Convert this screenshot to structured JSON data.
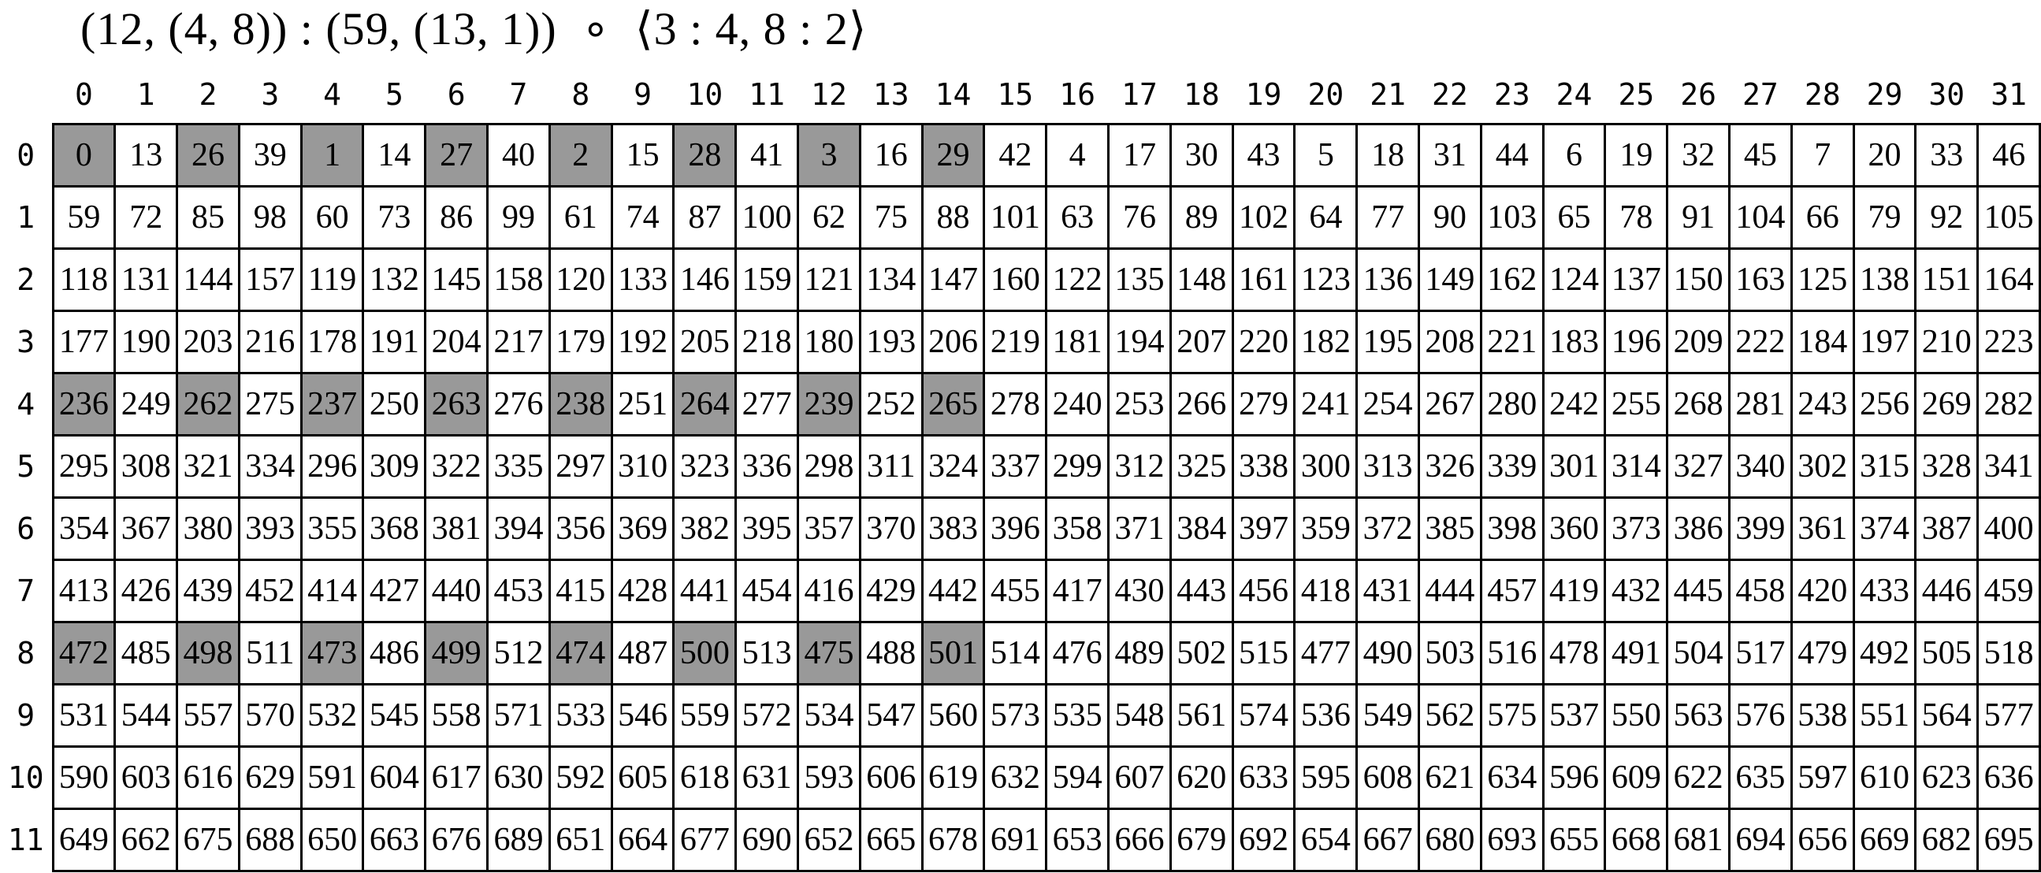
{
  "title": {
    "text": "(12, (4, 8)) : (59, (13, 1))  ∘  ⟨3 : 4, 8 : 2⟩"
  },
  "colors": {
    "background": "#ffffff",
    "text": "#000000",
    "grid_border": "#000000",
    "shaded_cell": "#999999"
  },
  "grid": {
    "column_headers": [
      "0",
      "1",
      "2",
      "3",
      "4",
      "5",
      "6",
      "7",
      "8",
      "9",
      "10",
      "11",
      "12",
      "13",
      "14",
      "15",
      "16",
      "17",
      "18",
      "19",
      "20",
      "21",
      "22",
      "23",
      "24",
      "25",
      "26",
      "27",
      "28",
      "29",
      "30",
      "31"
    ],
    "row_headers": [
      "0",
      "1",
      "2",
      "3",
      "4",
      "5",
      "6",
      "7",
      "8",
      "9",
      "10",
      "11"
    ],
    "shaded_rows": [
      0,
      4,
      8
    ],
    "shaded_cols": [
      0,
      2,
      4,
      6,
      8,
      10,
      12,
      14
    ],
    "rows": [
      [
        0,
        13,
        26,
        39,
        1,
        14,
        27,
        40,
        2,
        15,
        28,
        41,
        3,
        16,
        29,
        42,
        4,
        17,
        30,
        43,
        5,
        18,
        31,
        44,
        6,
        19,
        32,
        45,
        7,
        20,
        33,
        46
      ],
      [
        59,
        72,
        85,
        98,
        60,
        73,
        86,
        99,
        61,
        74,
        87,
        100,
        62,
        75,
        88,
        101,
        63,
        76,
        89,
        102,
        64,
        77,
        90,
        103,
        65,
        78,
        91,
        104,
        66,
        79,
        92,
        105
      ],
      [
        118,
        131,
        144,
        157,
        119,
        132,
        145,
        158,
        120,
        133,
        146,
        159,
        121,
        134,
        147,
        160,
        122,
        135,
        148,
        161,
        123,
        136,
        149,
        162,
        124,
        137,
        150,
        163,
        125,
        138,
        151,
        164
      ],
      [
        177,
        190,
        203,
        216,
        178,
        191,
        204,
        217,
        179,
        192,
        205,
        218,
        180,
        193,
        206,
        219,
        181,
        194,
        207,
        220,
        182,
        195,
        208,
        221,
        183,
        196,
        209,
        222,
        184,
        197,
        210,
        223
      ],
      [
        236,
        249,
        262,
        275,
        237,
        250,
        263,
        276,
        238,
        251,
        264,
        277,
        239,
        252,
        265,
        278,
        240,
        253,
        266,
        279,
        241,
        254,
        267,
        280,
        242,
        255,
        268,
        281,
        243,
        256,
        269,
        282
      ],
      [
        295,
        308,
        321,
        334,
        296,
        309,
        322,
        335,
        297,
        310,
        323,
        336,
        298,
        311,
        324,
        337,
        299,
        312,
        325,
        338,
        300,
        313,
        326,
        339,
        301,
        314,
        327,
        340,
        302,
        315,
        328,
        341
      ],
      [
        354,
        367,
        380,
        393,
        355,
        368,
        381,
        394,
        356,
        369,
        382,
        395,
        357,
        370,
        383,
        396,
        358,
        371,
        384,
        397,
        359,
        372,
        385,
        398,
        360,
        373,
        386,
        399,
        361,
        374,
        387,
        400
      ],
      [
        413,
        426,
        439,
        452,
        414,
        427,
        440,
        453,
        415,
        428,
        441,
        454,
        416,
        429,
        442,
        455,
        417,
        430,
        443,
        456,
        418,
        431,
        444,
        457,
        419,
        432,
        445,
        458,
        420,
        433,
        446,
        459
      ],
      [
        472,
        485,
        498,
        511,
        473,
        486,
        499,
        512,
        474,
        487,
        500,
        513,
        475,
        488,
        501,
        514,
        476,
        489,
        502,
        515,
        477,
        490,
        503,
        516,
        478,
        491,
        504,
        517,
        479,
        492,
        505,
        518
      ],
      [
        531,
        544,
        557,
        570,
        532,
        545,
        558,
        571,
        533,
        546,
        559,
        572,
        534,
        547,
        560,
        573,
        535,
        548,
        561,
        574,
        536,
        549,
        562,
        575,
        537,
        550,
        563,
        576,
        538,
        551,
        564,
        577
      ],
      [
        590,
        603,
        616,
        629,
        591,
        604,
        617,
        630,
        592,
        605,
        618,
        631,
        593,
        606,
        619,
        632,
        594,
        607,
        620,
        633,
        595,
        608,
        621,
        634,
        596,
        609,
        622,
        635,
        597,
        610,
        623,
        636
      ],
      [
        649,
        662,
        675,
        688,
        650,
        663,
        676,
        689,
        651,
        664,
        677,
        690,
        652,
        665,
        678,
        691,
        653,
        666,
        679,
        692,
        654,
        667,
        680,
        693,
        655,
        668,
        681,
        694,
        656,
        669,
        682,
        695
      ]
    ]
  }
}
